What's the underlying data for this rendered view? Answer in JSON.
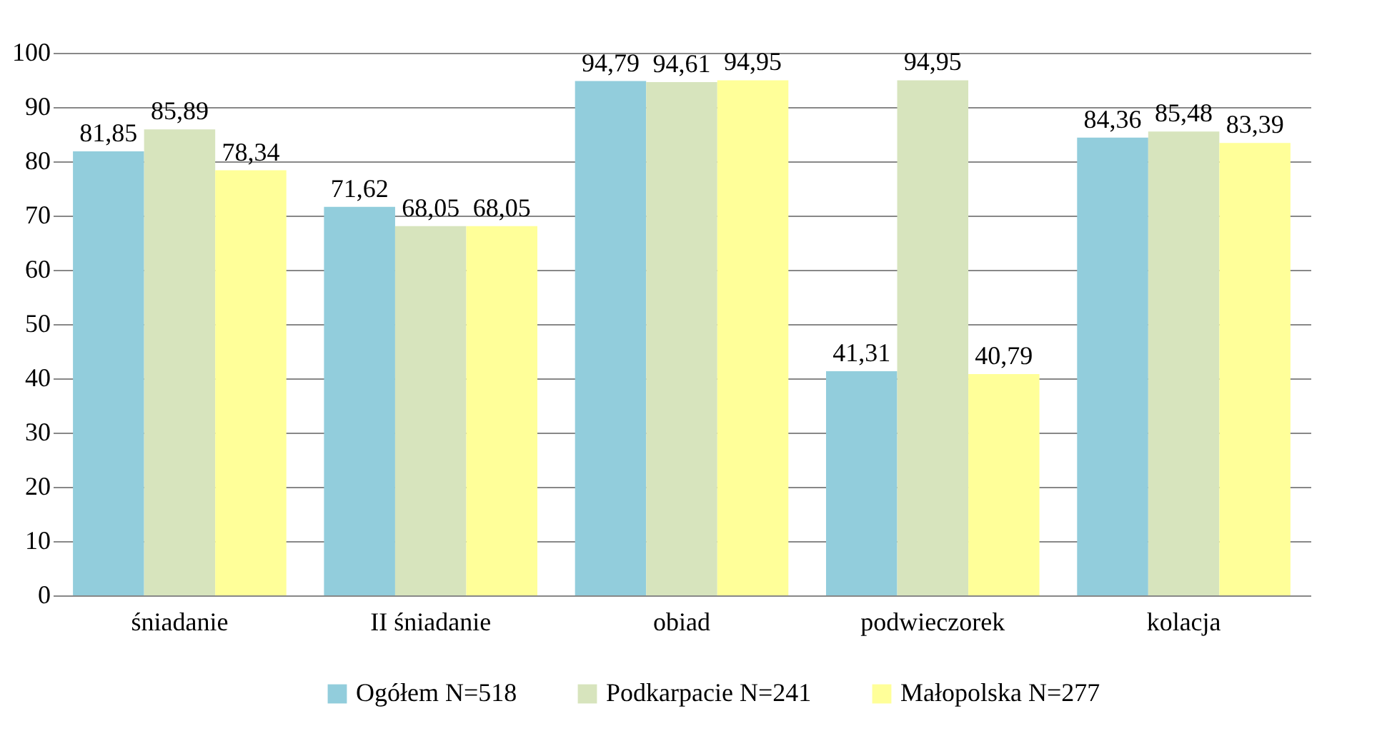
{
  "chart_data": {
    "type": "bar",
    "categories": [
      "śniadanie",
      "II śniadanie",
      "obiad",
      "podwieczorek",
      "kolacja"
    ],
    "series": [
      {
        "name": "Ogółem N=518",
        "color": "#92cddc",
        "values": [
          81.85,
          71.62,
          94.79,
          41.31,
          84.36
        ],
        "value_labels": [
          "81,85",
          "71,62",
          "94,79",
          "41,31",
          "84,36"
        ]
      },
      {
        "name": "Podkarpacie N=241",
        "color": "#d7e4bd",
        "values": [
          85.89,
          68.05,
          94.61,
          94.95,
          85.48
        ],
        "value_labels": [
          "85,89",
          "68,05",
          "94,61",
          "94,95",
          "85,48"
        ]
      },
      {
        "name": "Małopolska N=277",
        "color": "#ffff99",
        "values": [
          78.34,
          68.05,
          94.95,
          40.79,
          83.39
        ],
        "value_labels": [
          "78,34",
          "68,05",
          "94,95",
          "40,79",
          "83,39"
        ]
      }
    ],
    "ylim": [
      0,
      100
    ],
    "yticks": [
      0,
      10,
      20,
      30,
      40,
      50,
      60,
      70,
      80,
      90,
      100
    ],
    "grid": "y",
    "legend": "bottom"
  }
}
